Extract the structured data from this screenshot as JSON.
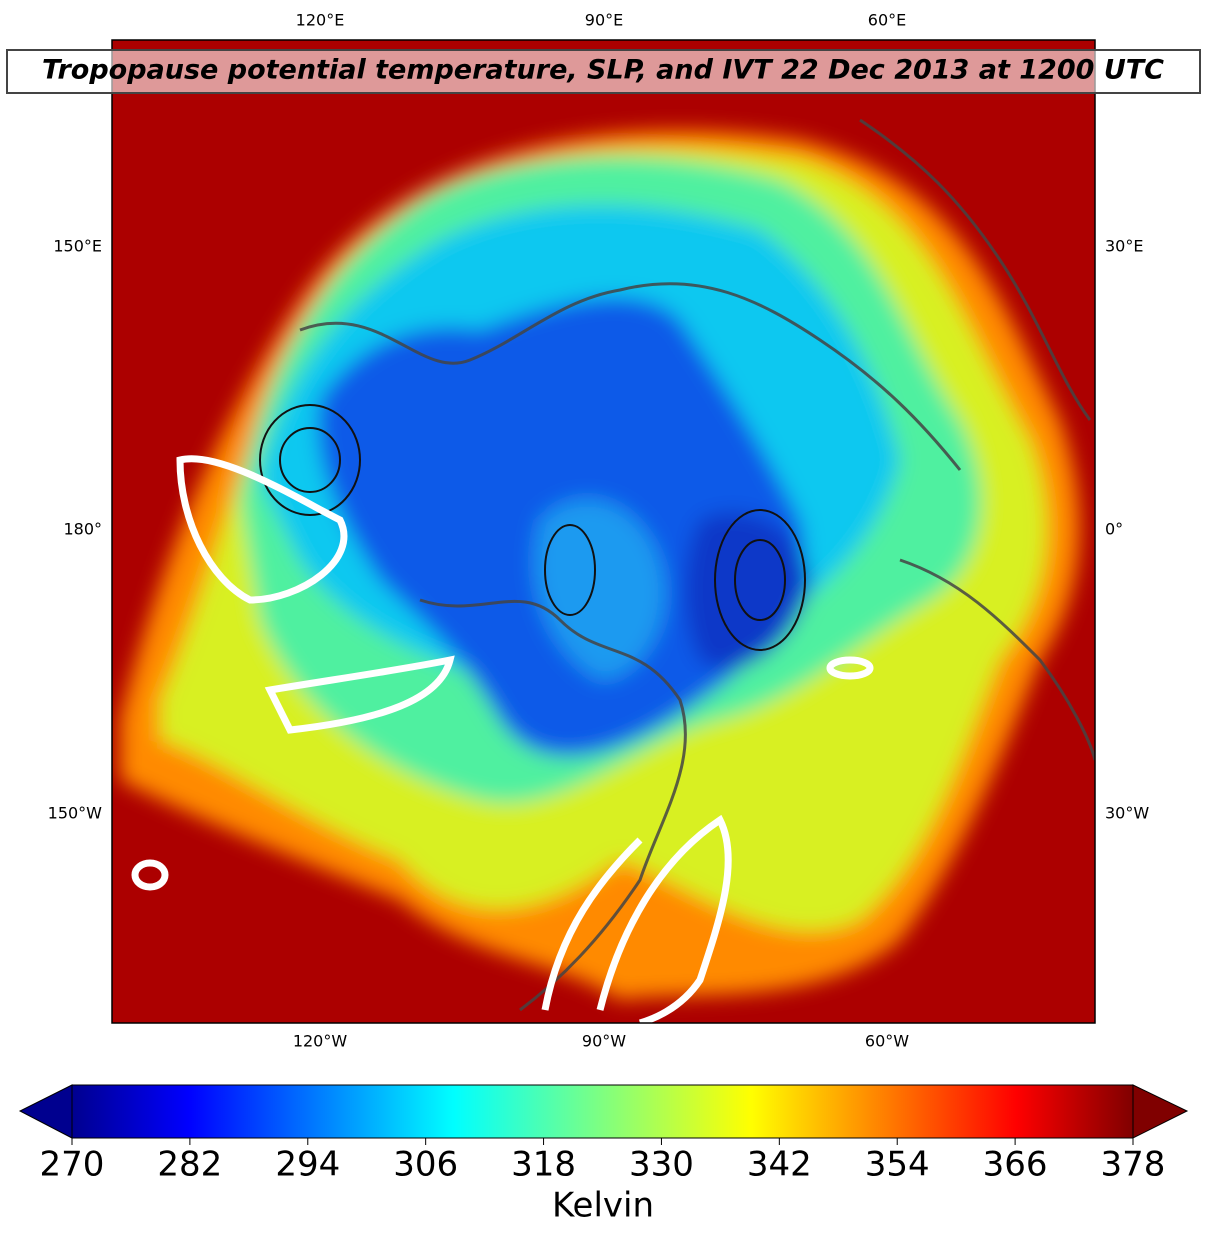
{
  "map": {
    "title": "Tropopause potential temperature, SLP, and IVT 22 Dec 2013 at 1200 UTC",
    "top_labels": [
      "120°E",
      "90°E",
      "60°E"
    ],
    "left_labels": [
      "150°E",
      "180°",
      "150°W"
    ],
    "right_labels": [
      "30°E",
      "0°",
      "30°W"
    ],
    "bottom_labels": [
      "120°W",
      "90°W",
      "60°W"
    ],
    "colorbar": {
      "label": "Kelvin",
      "colormap": "jet",
      "lim": [
        270,
        378
      ],
      "ticks": [
        270,
        282,
        294,
        306,
        318,
        330,
        342,
        354,
        366,
        378
      ]
    }
  }
}
